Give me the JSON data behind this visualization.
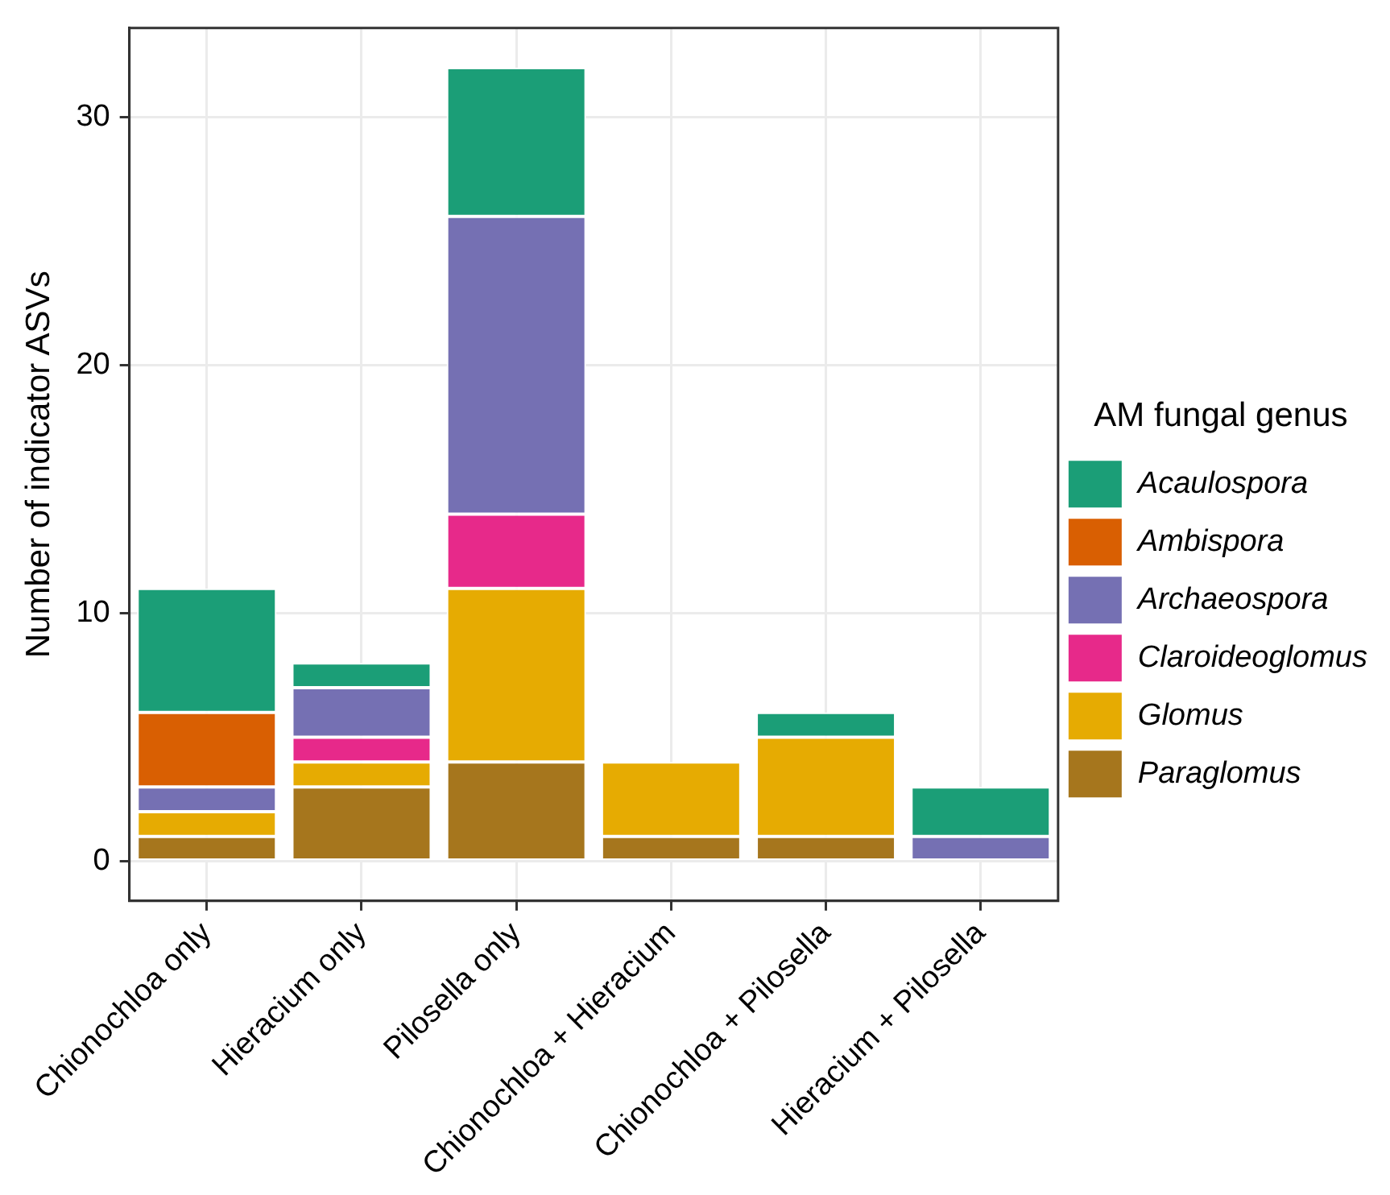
{
  "chart_data": {
    "type": "bar",
    "ylabel": "Number of indicator ASVs",
    "legend_title": "AM fungal genus",
    "categories": [
      "Chionochloa only",
      "Hieracium only",
      "Pilosella only",
      "Chionochloa + Hieracium",
      "Chionochloa + Pilosella",
      "Hieracium + Pilosella"
    ],
    "stacked": true,
    "ylim": [
      -1.6,
      33.6
    ],
    "yticks": [
      0,
      10,
      20,
      30
    ],
    "grid": true,
    "legend": "right",
    "series": [
      {
        "name": "Paraglomus",
        "color": "#a6761d",
        "values": [
          1,
          3,
          4,
          1,
          1,
          0
        ]
      },
      {
        "name": "Glomus",
        "color": "#e6ab02",
        "values": [
          1,
          1,
          7,
          3,
          4,
          0
        ]
      },
      {
        "name": "Claroideoglomus",
        "color": "#e7298a",
        "values": [
          0,
          1,
          3,
          0,
          0,
          0
        ]
      },
      {
        "name": "Archaeospora",
        "color": "#7570b3",
        "values": [
          1,
          2,
          12,
          0,
          0,
          1
        ]
      },
      {
        "name": "Ambispora",
        "color": "#d95f02",
        "values": [
          3,
          0,
          0,
          0,
          0,
          0
        ]
      },
      {
        "name": "Acaulospora",
        "color": "#1b9e77",
        "values": [
          5,
          1,
          6,
          0,
          1,
          2
        ]
      }
    ]
  }
}
